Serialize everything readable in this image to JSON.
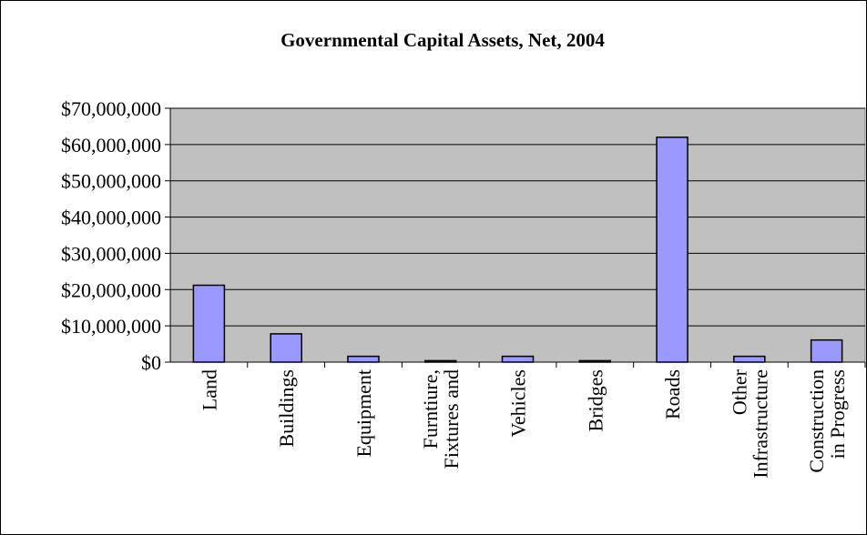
{
  "chart_data": {
    "type": "bar",
    "title": "Governmental Capital Assets, Net, 2004",
    "xlabel": "",
    "ylabel": "",
    "categories": [
      [
        "Land"
      ],
      [
        "Buildings"
      ],
      [
        "Equipment"
      ],
      [
        "Furntiure,",
        "Fixtures and"
      ],
      [
        "Vehicles"
      ],
      [
        "Bridges"
      ],
      [
        "Roads"
      ],
      [
        "Other",
        "Infrastructure"
      ],
      [
        "Construction",
        "in Progress"
      ]
    ],
    "values": [
      21200000,
      7800000,
      1600000,
      400000,
      1600000,
      400000,
      62000000,
      1600000,
      6100000
    ],
    "ylim": [
      0,
      70000000
    ],
    "yticks": [
      0,
      10000000,
      20000000,
      30000000,
      40000000,
      50000000,
      60000000,
      70000000
    ],
    "ytick_labels": [
      "$0",
      "$10,000,000",
      "$20,000,000",
      "$30,000,000",
      "$40,000,000",
      "$50,000,000",
      "$60,000,000",
      "$70,000,000"
    ],
    "grid": true,
    "legend": "none",
    "colors": {
      "bar_fill": "#9999ff",
      "bar_stroke": "#000000",
      "plot_bg": "#c0c0c0",
      "gridline": "#000000"
    }
  }
}
